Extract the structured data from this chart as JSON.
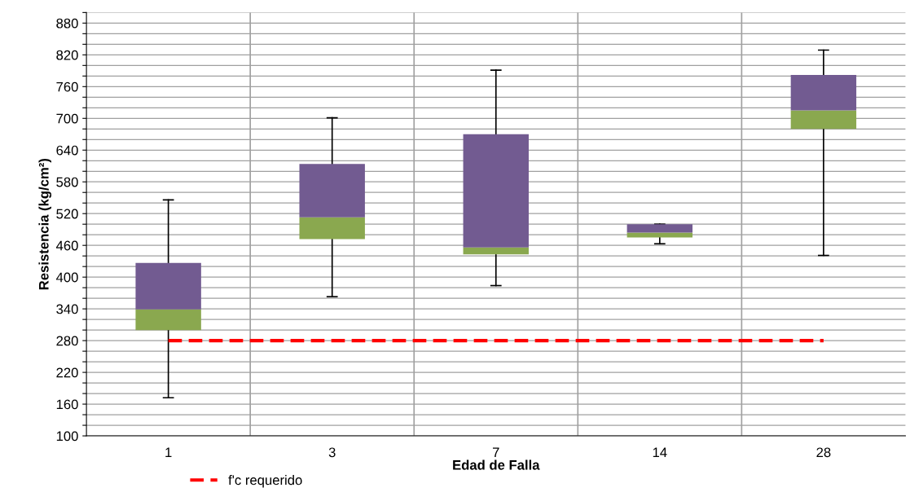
{
  "chart_data": {
    "type": "box",
    "xlabel": "Edad de Falla",
    "ylabel": "Resistencia (kg/cm²)",
    "categories": [
      "1",
      "3",
      "7",
      "14",
      "28"
    ],
    "colors": [
      [
        "#8aa84f",
        "#725b91"
      ],
      [
        "#8aa84f",
        "#725b91"
      ],
      [
        "#8aa84f",
        "#725b91"
      ],
      [
        "#8aa84f",
        "#725b91"
      ],
      [
        "#8aa84f",
        "#725b91"
      ]
    ],
    "boxes": [
      {
        "low": 172,
        "q1": 300,
        "median": 339,
        "q3": 427,
        "high": 546
      },
      {
        "low": 363,
        "q1": 472,
        "median": 513,
        "q3": 614,
        "high": 701
      },
      {
        "low": 384,
        "q1": 443,
        "median": 456,
        "q3": 670,
        "high": 791
      },
      {
        "low": 463,
        "q1": 475,
        "median": 484,
        "q3": 500,
        "high": 500
      },
      {
        "low": 441,
        "q1": 680,
        "median": 715,
        "q3": 782,
        "high": 829
      }
    ],
    "ylim": [
      100,
      900
    ],
    "yticks": [
      100,
      {
        "value": 120,
        "label": null
      },
      {
        "value": 140,
        "label": null
      },
      160,
      {
        "value": 180,
        "label": null
      },
      {
        "value": 200,
        "label": null
      },
      220,
      {
        "value": 240,
        "label": null
      },
      {
        "value": 260,
        "label": null
      },
      280,
      {
        "value": 300,
        "label": null
      },
      {
        "value": 320,
        "label": null
      },
      340,
      {
        "value": 360,
        "label": null
      },
      {
        "value": 380,
        "label": null
      },
      400,
      {
        "value": 420,
        "label": null
      },
      {
        "value": 440,
        "label": null
      },
      460,
      {
        "value": 480,
        "label": null
      },
      {
        "value": 500,
        "label": null
      },
      520,
      {
        "value": 540,
        "label": null
      },
      {
        "value": 560,
        "label": null
      },
      580,
      {
        "value": 600,
        "label": null
      },
      {
        "value": 620,
        "label": null
      },
      640,
      {
        "value": 660,
        "label": null
      },
      {
        "value": 680,
        "label": null
      },
      700,
      {
        "value": 720,
        "label": null
      },
      {
        "value": 740,
        "label": null
      },
      760,
      {
        "value": 780,
        "label": null
      },
      {
        "value": 800,
        "label": null
      },
      820,
      {
        "value": 840,
        "label": null
      },
      {
        "value": 860,
        "label": null
      },
      880,
      {
        "value": 900,
        "label": null
      }
    ],
    "ref_lines": [
      {
        "axis": "y",
        "value": 280,
        "label": "f'c requerido",
        "color": "#ff0000",
        "line_style": "dashed"
      }
    ],
    "grid": true,
    "legend": "bottom"
  }
}
